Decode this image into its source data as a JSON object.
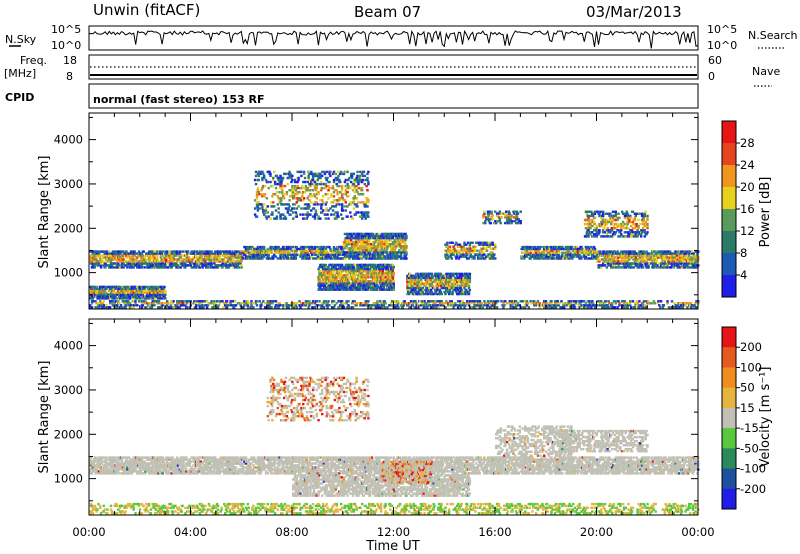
{
  "header": {
    "station": "Unwin (fitACF)",
    "beam": "Beam 07",
    "date": "03/Mar/2013"
  },
  "top_panels": {
    "nsky_label": "N.Sky",
    "nsky_tick_top": "10^5",
    "nsky_tick_bottom": "10^0",
    "nsearch_label": "N.Search",
    "nsearch_tick_top": "10^5",
    "nsearch_tick_bottom": "10^0",
    "freq_label": "Freq.",
    "freq_unit": "[MHz]",
    "freq_tick_top": "18",
    "freq_tick_bottom": "8",
    "nave_label": "Nave",
    "nave_tick_top": "60",
    "nave_tick_bottom": "0",
    "cpid_label": "CPID",
    "cpid_text": "normal (fast stereo) 153 RF"
  },
  "chart_data": [
    {
      "type": "heatmap",
      "name": "power",
      "xlabel": "Time UT",
      "ylabel": "Slant Range [km]",
      "x_ticks": [
        "00:00",
        "04:00",
        "08:00",
        "12:00",
        "16:00",
        "20:00",
        "00:00"
      ],
      "x_range_hours": [
        0,
        24
      ],
      "ylim": [
        180,
        4600
      ],
      "y_ticks": [
        1000,
        2000,
        3000,
        4000
      ],
      "colorbar_label": "Power [dB]",
      "colorbar_ticks": [
        "4",
        "8",
        "12",
        "16",
        "20",
        "24",
        "28"
      ],
      "colorbar_colors": [
        "#1e1ee6",
        "#1e5ab4",
        "#2a7a6a",
        "#5a9a5a",
        "#e6d21e",
        "#f0961e",
        "#e6461e",
        "#e61414"
      ],
      "grid": false
    },
    {
      "type": "heatmap",
      "name": "velocity",
      "xlabel": "Time UT",
      "ylabel": "Slant Range [km]",
      "x_ticks": [
        "00:00",
        "04:00",
        "08:00",
        "12:00",
        "16:00",
        "20:00",
        "00:00"
      ],
      "x_range_hours": [
        0,
        24
      ],
      "ylim": [
        180,
        4600
      ],
      "y_ticks": [
        1000,
        2000,
        3000,
        4000
      ],
      "colorbar_label": "Velocity [m s⁻¹]",
      "colorbar_ticks": [
        "200",
        "100",
        "50",
        "15",
        "-15",
        "-50",
        "-100",
        "-200"
      ],
      "colorbar_colors": [
        "#1e1ee6",
        "#1e50a0",
        "#2a8a5a",
        "#5ac83c",
        "#c0c0b4",
        "#e6b43c",
        "#f08c1e",
        "#e65a1e",
        "#e61414"
      ],
      "grid": false
    }
  ],
  "time_axis_label": "Time UT",
  "time_ticks": [
    "00:00",
    "04:00",
    "08:00",
    "12:00",
    "16:00",
    "20:00",
    "00:00"
  ]
}
